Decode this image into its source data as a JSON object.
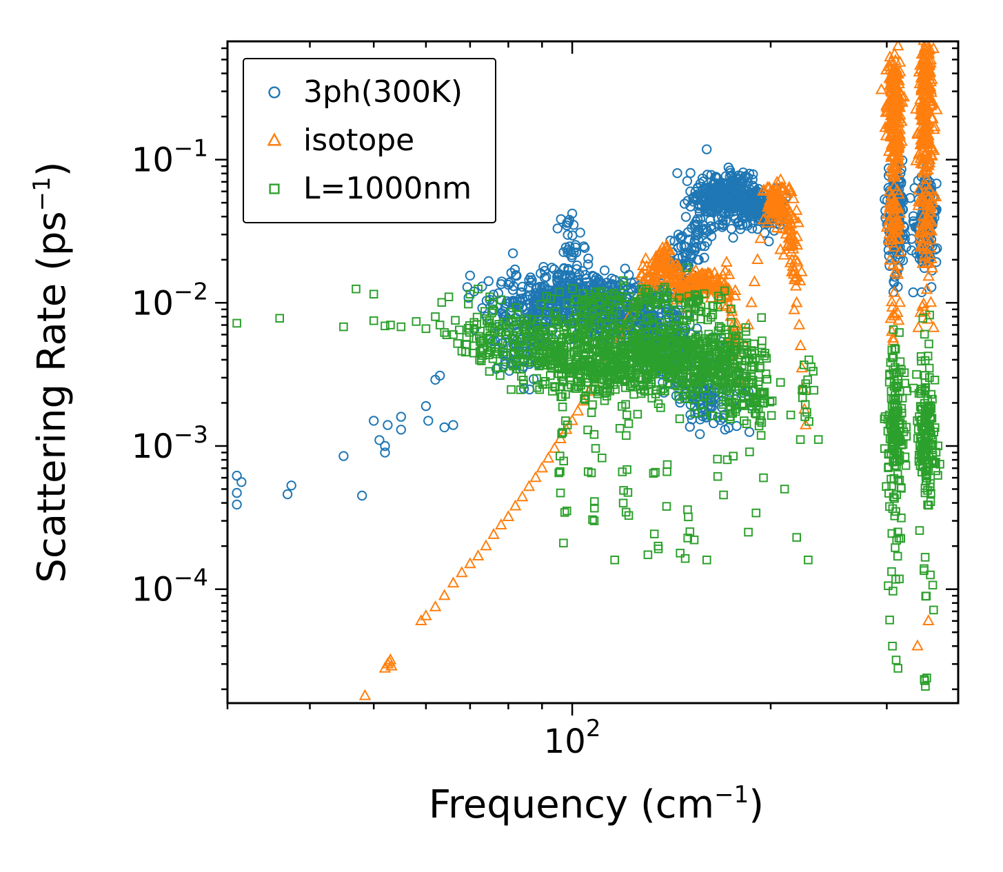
{
  "figure": {
    "background": "#ffffff",
    "axes_color": "#000000"
  },
  "chart_data": {
    "type": "scatter",
    "xscale": "log",
    "yscale": "log",
    "xlim": [
      30,
      385
    ],
    "ylim": [
      1.6e-05,
      0.67
    ],
    "xlabel_parts": [
      "Frequency (cm",
      "−1",
      ")"
    ],
    "ylabel_parts": [
      "Scattering Rate (ps",
      "−1",
      ")"
    ],
    "x_major_ticks": [
      100
    ],
    "x_tick_exponents": [
      2
    ],
    "y_major_ticks": [
      0.1,
      0.01,
      0.001,
      0.0001
    ],
    "y_tick_exponents": [
      -1,
      -2,
      -3,
      -4
    ],
    "tick_label_base": "10",
    "grid": false,
    "legend_position": "upper left",
    "clusters_format": "[x_center_cm-1, y_center_ps-1, x_spread_decades, y_spread_decades, n_points]",
    "series": [
      {
        "name": "3ph(300K)",
        "marker": "circle",
        "color": "#1f77b4",
        "points": [
          [
            31,
            0.00039
          ],
          [
            31,
            0.00047
          ],
          [
            31,
            0.00062
          ],
          [
            31.5,
            0.00056
          ],
          [
            37,
            0.00046
          ],
          [
            37.5,
            0.00053
          ],
          [
            45,
            0.00085
          ],
          [
            48,
            0.00045
          ],
          [
            50,
            0.0015
          ],
          [
            51,
            0.0011
          ],
          [
            52,
            0.001
          ],
          [
            52,
            0.0009
          ],
          [
            52.5,
            0.0014
          ],
          [
            55,
            0.0016
          ],
          [
            55,
            0.0013
          ],
          [
            60,
            0.0019
          ],
          [
            60.5,
            0.0015
          ],
          [
            62,
            0.0029
          ],
          [
            63,
            0.0031
          ],
          [
            64,
            0.00135
          ],
          [
            66,
            0.0014
          ],
          [
            70,
            0.0155
          ],
          [
            71,
            0.012
          ],
          [
            73,
            0.013
          ],
          [
            75,
            0.0105
          ],
          [
            76,
            0.009
          ],
          [
            78,
            0.0135
          ],
          [
            99,
            0.038
          ],
          [
            100,
            0.042
          ],
          [
            100.5,
            0.035
          ]
        ],
        "clusters": [
          [
            85,
            0.009,
            0.035,
            0.13,
            110
          ],
          [
            83,
            0.0045,
            0.03,
            0.1,
            40
          ],
          [
            92,
            0.011,
            0.025,
            0.1,
            90
          ],
          [
            100,
            0.011,
            0.03,
            0.1,
            150
          ],
          [
            100,
            0.022,
            0.01,
            0.12,
            30
          ],
          [
            110,
            0.0095,
            0.03,
            0.11,
            150
          ],
          [
            120,
            0.008,
            0.03,
            0.12,
            120
          ],
          [
            130,
            0.007,
            0.025,
            0.13,
            90
          ],
          [
            140,
            0.0055,
            0.025,
            0.14,
            70
          ],
          [
            150,
            0.0035,
            0.025,
            0.13,
            60
          ],
          [
            158,
            0.002,
            0.015,
            0.1,
            45
          ],
          [
            170,
            0.0022,
            0.018,
            0.12,
            30
          ],
          [
            145,
            0.015,
            0.013,
            0.09,
            30
          ],
          [
            150,
            0.022,
            0.012,
            0.09,
            30
          ],
          [
            155,
            0.032,
            0.01,
            0.08,
            30
          ],
          [
            163,
            0.05,
            0.018,
            0.1,
            110
          ],
          [
            172,
            0.058,
            0.018,
            0.09,
            120
          ],
          [
            182,
            0.05,
            0.018,
            0.08,
            100
          ],
          [
            192,
            0.045,
            0.013,
            0.07,
            60
          ],
          [
            200,
            0.042,
            0.012,
            0.08,
            35
          ],
          [
            310,
            0.035,
            0.008,
            0.2,
            120
          ],
          [
            344,
            0.035,
            0.008,
            0.2,
            120
          ],
          [
            310,
            0.06,
            0.005,
            0.06,
            40
          ],
          [
            344,
            0.055,
            0.005,
            0.06,
            40
          ]
        ]
      },
      {
        "name": "isotope",
        "marker": "triangle",
        "color": "#ff7f0e",
        "points": [
          [
            48.5,
            1.8e-05
          ],
          [
            52,
            2.8e-05
          ],
          [
            52.5,
            3e-05
          ],
          [
            53,
            3.2e-05
          ],
          [
            53.2,
            2.9e-05
          ],
          [
            52.8,
            3.1e-05
          ],
          [
            59,
            6e-05
          ],
          [
            60,
            6.5e-05
          ],
          [
            62,
            7.5e-05
          ],
          [
            64,
            9e-05
          ],
          [
            66,
            0.00011
          ],
          [
            68,
            0.00013
          ],
          [
            70,
            0.00015
          ],
          [
            72,
            0.00017
          ],
          [
            74,
            0.0002
          ],
          [
            76,
            0.00024
          ],
          [
            78,
            0.00028
          ],
          [
            80,
            0.00032
          ],
          [
            82,
            0.00038
          ],
          [
            84,
            0.00044
          ],
          [
            86,
            0.00052
          ],
          [
            88,
            0.0006
          ],
          [
            90,
            0.0007
          ],
          [
            92,
            0.00082
          ],
          [
            94,
            0.00096
          ],
          [
            96,
            0.00112
          ],
          [
            98,
            0.0013
          ],
          [
            100,
            0.0015
          ],
          [
            102,
            0.00175
          ],
          [
            104,
            0.00205
          ],
          [
            106,
            0.0024
          ],
          [
            108,
            0.0028
          ],
          [
            110,
            0.0033
          ],
          [
            112,
            0.0038
          ],
          [
            114,
            0.0044
          ],
          [
            116,
            0.0051
          ],
          [
            118,
            0.0059
          ],
          [
            120,
            0.0069
          ],
          [
            122,
            0.008
          ],
          [
            124,
            0.0092
          ],
          [
            126,
            0.0106
          ],
          [
            128,
            0.0122
          ],
          [
            174,
            0.008
          ],
          [
            176,
            0.006
          ],
          [
            177,
            0.0045
          ],
          [
            178,
            0.0035
          ],
          [
            179,
            0.0028
          ],
          [
            183,
            0.005
          ],
          [
            185,
            0.007
          ],
          [
            187,
            0.01
          ],
          [
            189,
            0.014
          ],
          [
            191,
            0.02
          ],
          [
            193,
            0.028
          ],
          [
            195,
            0.038
          ],
          [
            219,
            0.01
          ],
          [
            221,
            0.007
          ],
          [
            222,
            0.005
          ],
          [
            223,
            0.0035
          ],
          [
            224,
            0.0025
          ],
          [
            225,
            0.0018
          ],
          [
            226,
            0.0014
          ],
          [
            334,
            4e-05
          ],
          [
            347,
            6e-05
          ]
        ],
        "clusters": [
          [
            133,
            0.016,
            0.008,
            0.06,
            40
          ],
          [
            137,
            0.021,
            0.005,
            0.05,
            30
          ],
          [
            141,
            0.016,
            0.006,
            0.05,
            25
          ],
          [
            147,
            0.0125,
            0.008,
            0.05,
            30
          ],
          [
            153,
            0.013,
            0.008,
            0.05,
            30
          ],
          [
            159,
            0.0145,
            0.008,
            0.05,
            30
          ],
          [
            165,
            0.0135,
            0.008,
            0.05,
            25
          ],
          [
            171,
            0.0115,
            0.008,
            0.06,
            25
          ],
          [
            176,
            0.005,
            0.006,
            0.15,
            15
          ],
          [
            200,
            0.05,
            0.006,
            0.07,
            35
          ],
          [
            205,
            0.055,
            0.006,
            0.07,
            35
          ],
          [
            210,
            0.045,
            0.006,
            0.08,
            30
          ],
          [
            214,
            0.03,
            0.006,
            0.1,
            25
          ],
          [
            217,
            0.018,
            0.005,
            0.1,
            20
          ],
          [
            308,
            0.18,
            0.006,
            0.28,
            160
          ],
          [
            308,
            0.33,
            0.004,
            0.09,
            50
          ],
          [
            308,
            0.035,
            0.006,
            0.18,
            50
          ],
          [
            308,
            0.009,
            0.005,
            0.1,
            12
          ],
          [
            344,
            0.2,
            0.006,
            0.28,
            170
          ],
          [
            344,
            0.4,
            0.004,
            0.07,
            60
          ],
          [
            344,
            0.035,
            0.006,
            0.18,
            50
          ],
          [
            344,
            0.008,
            0.005,
            0.1,
            10
          ]
        ]
      },
      {
        "name": "L=1000nm",
        "marker": "square",
        "color": "#2ca02c",
        "points": [
          [
            31,
            0.0072
          ],
          [
            36,
            0.0078
          ],
          [
            45,
            0.0068
          ],
          [
            47,
            0.0125
          ],
          [
            50,
            0.0115
          ],
          [
            50,
            0.0075
          ],
          [
            52,
            0.0069
          ],
          [
            53,
            0.007
          ],
          [
            55,
            0.0068
          ],
          [
            58,
            0.0074
          ],
          [
            60,
            0.0066
          ],
          [
            62,
            0.008
          ],
          [
            63,
            0.007
          ],
          [
            64,
            0.0062
          ],
          [
            65,
            0.011
          ],
          [
            66,
            0.006
          ],
          [
            67,
            0.0052
          ],
          [
            68,
            0.0046
          ],
          [
            70,
            0.0115
          ],
          [
            72,
            0.0125
          ],
          [
            75,
            0.011
          ],
          [
            78,
            0.0105
          ],
          [
            96,
            0.00047
          ],
          [
            97,
            0.00021
          ],
          [
            108,
            0.0003
          ],
          [
            116,
            0.00016
          ],
          [
            135,
            0.0002
          ],
          [
            150,
            0.00032
          ],
          [
            160,
            0.00016
          ],
          [
            185,
            0.00025
          ],
          [
            195,
            0.0006
          ],
          [
            210,
            0.0005
          ],
          [
            219,
            0.00023
          ],
          [
            228,
            0.00016
          ],
          [
            306,
            4e-05
          ],
          [
            310,
            3.2e-05
          ],
          [
            312,
            2.8e-05
          ],
          [
            345,
            2.4e-05
          ]
        ],
        "clusters": [
          [
            75,
            0.006,
            0.03,
            0.12,
            60
          ],
          [
            85,
            0.005,
            0.03,
            0.14,
            90
          ],
          [
            95,
            0.0045,
            0.03,
            0.15,
            120
          ],
          [
            105,
            0.004,
            0.03,
            0.15,
            140
          ],
          [
            115,
            0.004,
            0.03,
            0.15,
            140
          ],
          [
            125,
            0.0042,
            0.03,
            0.15,
            120
          ],
          [
            135,
            0.0045,
            0.03,
            0.15,
            110
          ],
          [
            145,
            0.0042,
            0.03,
            0.15,
            100
          ],
          [
            155,
            0.004,
            0.03,
            0.15,
            90
          ],
          [
            165,
            0.0038,
            0.025,
            0.15,
            80
          ],
          [
            175,
            0.0035,
            0.025,
            0.15,
            70
          ],
          [
            185,
            0.0035,
            0.02,
            0.15,
            50
          ],
          [
            110,
            0.0105,
            0.04,
            0.05,
            50
          ],
          [
            135,
            0.0105,
            0.03,
            0.05,
            35
          ],
          [
            155,
            0.0095,
            0.02,
            0.05,
            20
          ],
          [
            97,
            0.0009,
            0.006,
            0.25,
            12
          ],
          [
            108,
            0.0007,
            0.006,
            0.25,
            10
          ],
          [
            120,
            0.0005,
            0.006,
            0.3,
            10
          ],
          [
            135,
            0.0004,
            0.006,
            0.3,
            8
          ],
          [
            150,
            0.00025,
            0.005,
            0.2,
            6
          ],
          [
            170,
            0.0012,
            0.01,
            0.2,
            12
          ],
          [
            185,
            0.0015,
            0.01,
            0.2,
            12
          ],
          [
            192,
            0.0022,
            0.008,
            0.15,
            20
          ],
          [
            225,
            0.0018,
            0.008,
            0.2,
            18
          ],
          [
            309,
            0.0014,
            0.007,
            0.26,
            150
          ],
          [
            344,
            0.0014,
            0.007,
            0.26,
            150
          ],
          [
            309,
            0.00012,
            0.005,
            0.3,
            14
          ],
          [
            344,
            0.0001,
            0.005,
            0.3,
            12
          ]
        ]
      }
    ]
  }
}
